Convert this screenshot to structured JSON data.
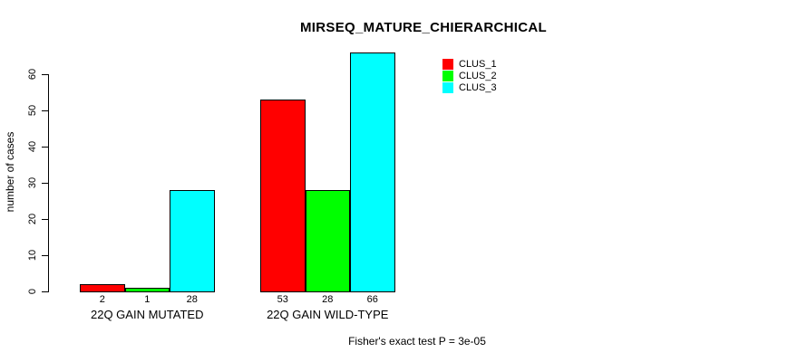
{
  "chart_data": {
    "type": "bar",
    "title": "MIRSEQ_MATURE_CHIERARCHICAL",
    "ylabel": "number of cases",
    "xlabel": "",
    "categories": [
      "22Q GAIN MUTATED",
      "22Q GAIN WILD-TYPE"
    ],
    "series": [
      {
        "name": "CLUS_1",
        "color": "#FF0000",
        "values": [
          2,
          53
        ]
      },
      {
        "name": "CLUS_2",
        "color": "#00FF00",
        "values": [
          1,
          28
        ]
      },
      {
        "name": "CLUS_3",
        "color": "#00FFFF",
        "values": [
          28,
          66
        ]
      }
    ],
    "bar_value_labels": [
      [
        2,
        1,
        28
      ],
      [
        53,
        28,
        66
      ]
    ],
    "yticks": [
      0,
      10,
      20,
      30,
      40,
      50,
      60
    ],
    "ylim": [
      0,
      66
    ],
    "grid": false,
    "legend_position": "top-right",
    "annotation": "Fisher's exact test P = 3e-05"
  }
}
